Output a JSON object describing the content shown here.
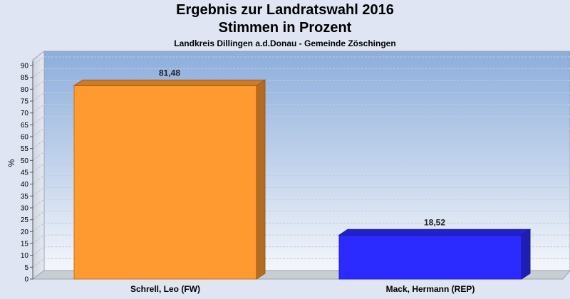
{
  "header": {
    "title_line1": "Ergebnis zur Landratswahl 2016",
    "title_line2": "Stimmen in Prozent",
    "subtitle": "Landkreis Dillingen a.d.Donau - Gemeinde Zöschingen"
  },
  "chart_data": {
    "type": "bar",
    "title": "Ergebnis zur Landratswahl 2016 Stimmen in Prozent",
    "subtitle": "Landkreis Dillingen a.d.Donau - Gemeinde Zöschingen",
    "xlabel": "",
    "ylabel": "%",
    "ylim": [
      0,
      90
    ],
    "yticks": [
      0,
      5,
      10,
      15,
      20,
      25,
      30,
      35,
      40,
      45,
      50,
      55,
      60,
      65,
      70,
      75,
      80,
      85,
      90
    ],
    "categories": [
      "Schrell, Leo (FW)",
      "Mack, Hermann (REP)"
    ],
    "values": [
      81.48,
      18.52
    ],
    "value_labels": [
      "81,48",
      "18,52"
    ],
    "colors": [
      "#ff9a30",
      "#2b2bff"
    ],
    "grid": true,
    "legend": "none"
  }
}
